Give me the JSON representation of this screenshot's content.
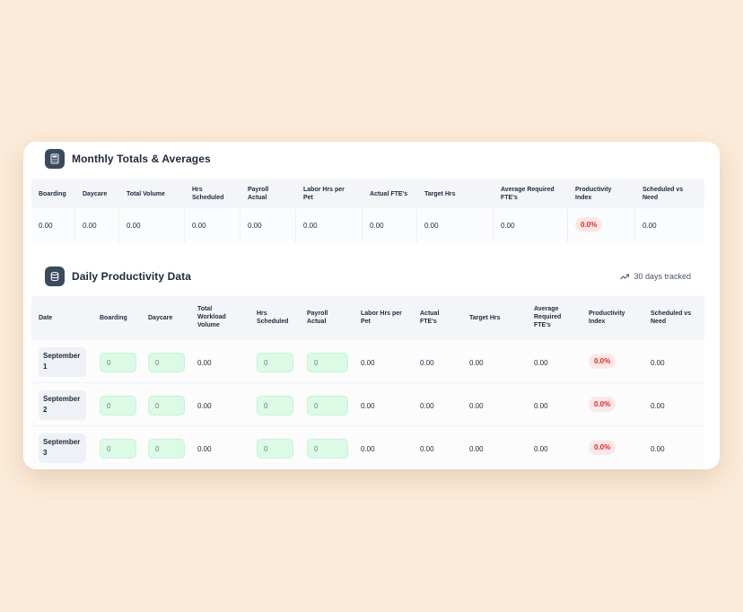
{
  "monthly": {
    "title": "Monthly Totals & Averages",
    "icon": "calculator-icon",
    "columns": [
      "Boarding",
      "Daycare",
      "Total Volume",
      "Hrs Scheduled",
      "Payroll Actual",
      "Labor Hrs per Pet",
      "Actual FTE's",
      "Target Hrs",
      "Average Required FTE's",
      "Productivity Index",
      "Scheduled vs Need"
    ],
    "values": [
      "0.00",
      "0.00",
      "0.00",
      "0.00",
      "0.00",
      "0.00",
      "0.00",
      "0.00",
      "0.00",
      "0.0%",
      "0.00"
    ]
  },
  "daily": {
    "title": "Daily Productivity Data",
    "icon": "database-icon",
    "tracked": "30 days tracked",
    "columns": [
      "Date",
      "Boarding",
      "Daycare",
      "Total Workload Volume",
      "Hrs Scheduled",
      "Payroll Actual",
      "Labor Hrs per Pet",
      "Actual FTE's",
      "Target Hrs",
      "Average Required FTE's",
      "Productivity Index",
      "Scheduled vs Need"
    ],
    "rows": [
      {
        "date": "September 1",
        "boarding": "0",
        "daycare": "0",
        "total": "0.00",
        "hrs": "0",
        "payroll": "0",
        "labor": "0.00",
        "fte": "0.00",
        "target": "0.00",
        "avg": "0.00",
        "index": "0.0%",
        "svn": "0.00"
      },
      {
        "date": "September 2",
        "boarding": "0",
        "daycare": "0",
        "total": "0.00",
        "hrs": "0",
        "payroll": "0",
        "labor": "0.00",
        "fte": "0.00",
        "target": "0.00",
        "avg": "0.00",
        "index": "0.0%",
        "svn": "0.00"
      },
      {
        "date": "September 3",
        "boarding": "0",
        "daycare": "0",
        "total": "0.00",
        "hrs": "0",
        "payroll": "0",
        "labor": "0.00",
        "fte": "0.00",
        "target": "0.00",
        "avg": "0.00",
        "index": "0.0%",
        "svn": "0.00"
      }
    ]
  },
  "colors": {
    "background": "#fcebd9",
    "accent_icon": "#3b4a5c",
    "input_green": "#dcfbe6",
    "badge_red": "#dc2626",
    "badge_bg": "#fde8e8"
  }
}
